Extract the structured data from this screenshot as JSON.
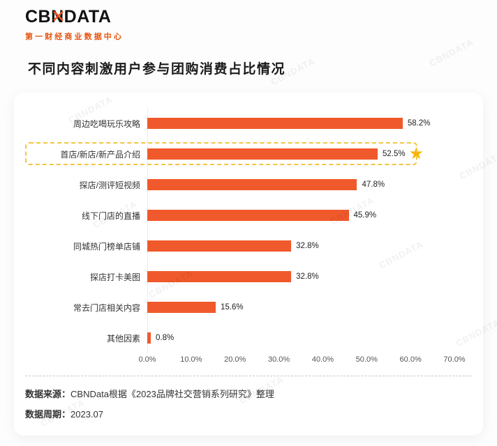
{
  "logo": {
    "left": "CB",
    "mark": "N",
    "overlay": "✕",
    "right": "DATA",
    "subtitle": "第一财经商业数据中心"
  },
  "title": "不同内容刺激用户参与团购消费占比情况",
  "watermark": "CBNDATA",
  "icons": {
    "star": "★"
  },
  "colors": {
    "bar": "#F0592B",
    "brand_orange": "#E8530E",
    "highlight_border": "#F4C542",
    "star_gold": "#F8B500"
  },
  "chart_data": {
    "type": "bar",
    "orientation": "horizontal",
    "title": "不同内容刺激用户参与团购消费占比情况",
    "categories": [
      "周边吃喝玩乐攻略",
      "首店/新店/新产品介绍",
      "探店/测评短视频",
      "线下门店的直播",
      "同城热门榜单店铺",
      "探店打卡美图",
      "常去门店相关内容",
      "其他因素"
    ],
    "values": [
      58.2,
      52.5,
      47.8,
      45.9,
      32.8,
      32.8,
      15.6,
      0.8
    ],
    "value_labels": [
      "58.2%",
      "52.5%",
      "47.8%",
      "45.9%",
      "32.8%",
      "32.8%",
      "15.6%",
      "0.8%"
    ],
    "x_ticks": [
      "0.0%",
      "10.0%",
      "20.0%",
      "30.0%",
      "40.0%",
      "50.0%",
      "60.0%",
      "70.0%"
    ],
    "xlim": [
      0,
      70
    ],
    "highlight_index": 1,
    "grid": false,
    "legend": null,
    "xlabel": "",
    "ylabel": ""
  },
  "footer": {
    "source_label": "数据来源：",
    "source_text": "CBNData根据《2023品牌社交营销系列研究》整理",
    "period_label": "数据周期：",
    "period_text": "2023.07"
  }
}
